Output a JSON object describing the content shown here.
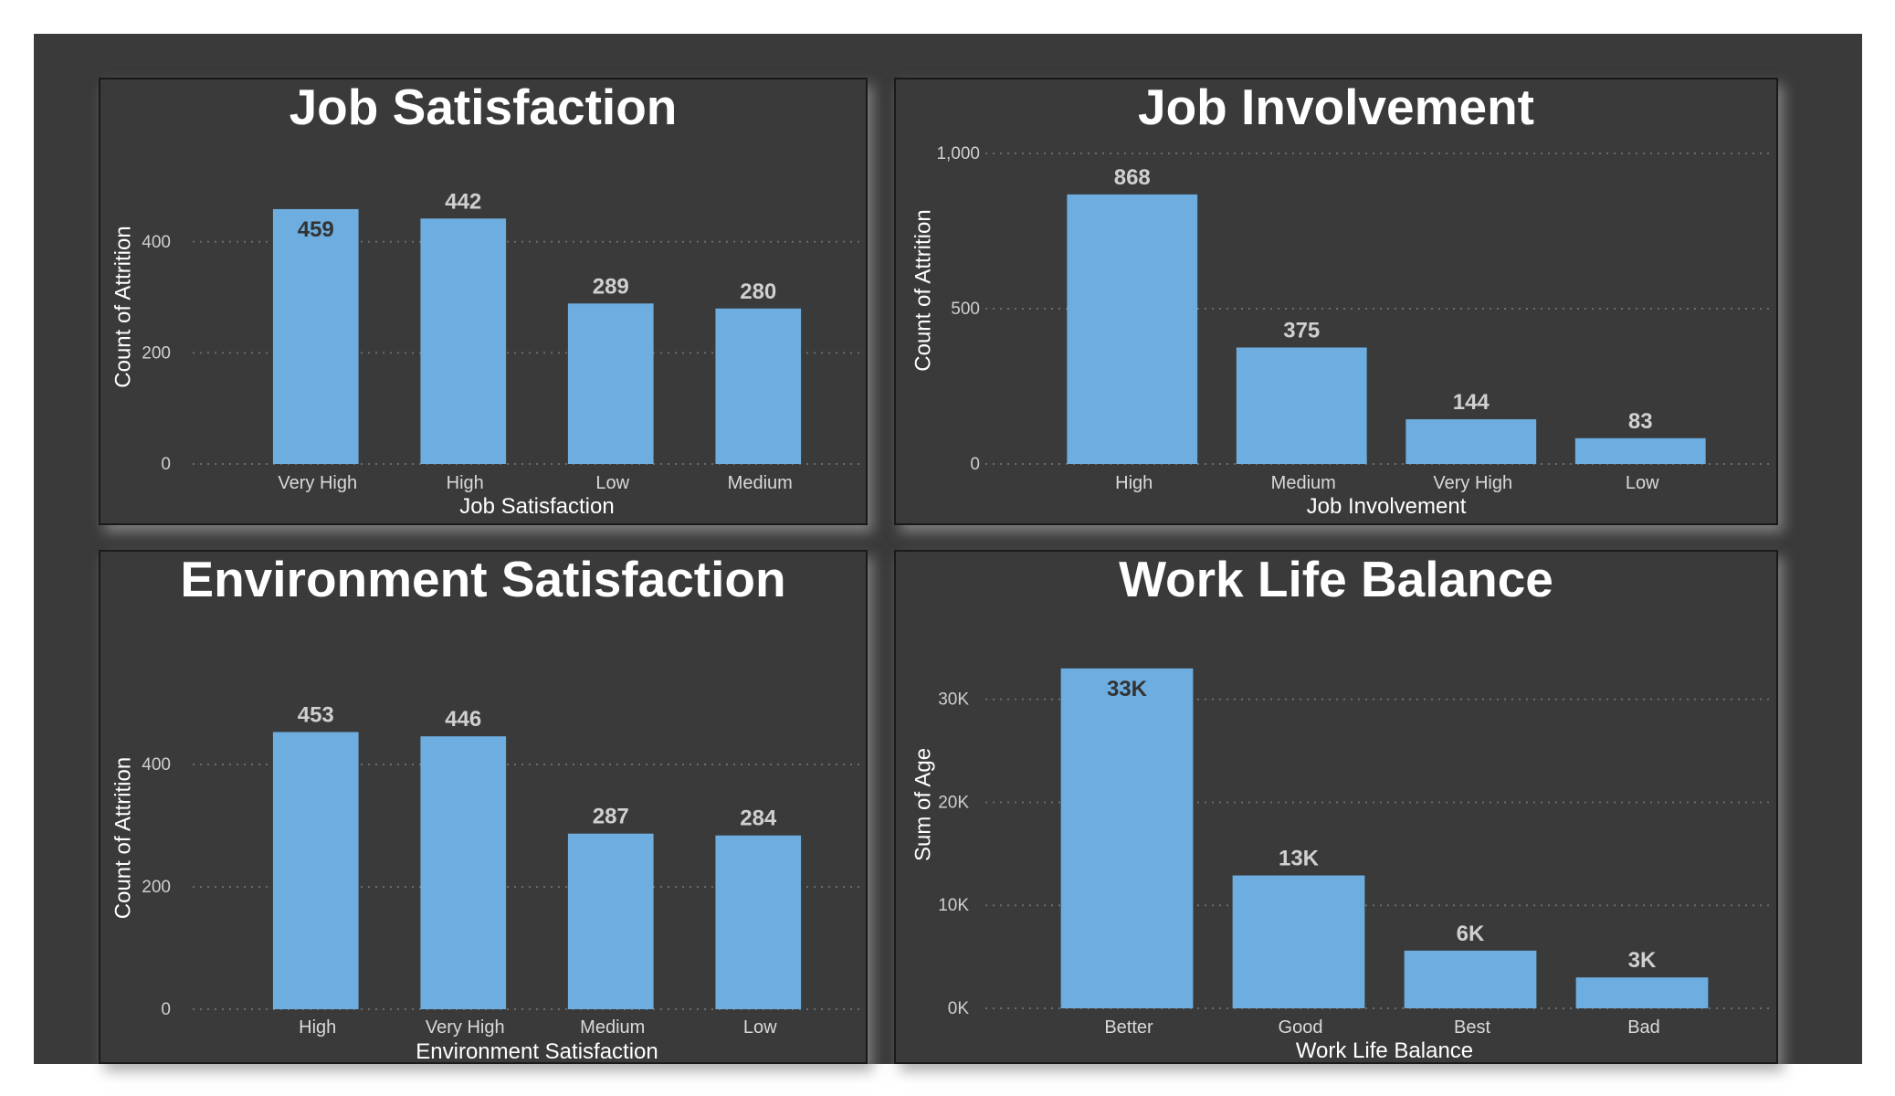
{
  "colors": {
    "background": "#3a3a3a",
    "bar": "#6daddf",
    "label_outside": "#d0d0d0",
    "label_inside": "#333333"
  },
  "chart_data": [
    {
      "type": "bar",
      "title": "Job Satisfaction",
      "xlabel": "Job Satisfaction",
      "ylabel": "Count of Attrition",
      "categories": [
        "Very High",
        "High",
        "Low",
        "Medium"
      ],
      "values": [
        459,
        442,
        289,
        280
      ],
      "data_labels": [
        "459",
        "442",
        "289",
        "280"
      ],
      "data_label_inside": [
        true,
        false,
        false,
        false
      ],
      "ylim": [
        0,
        500
      ],
      "yticks": [
        0,
        200,
        400
      ],
      "ytick_labels": [
        "0",
        "200",
        "400"
      ],
      "grid": true
    },
    {
      "type": "bar",
      "title": "Job Involvement",
      "xlabel": "Job Involvement",
      "ylabel": "Count of Attrition",
      "categories": [
        "High",
        "Medium",
        "Very High",
        "Low"
      ],
      "values": [
        868,
        375,
        144,
        83
      ],
      "data_labels": [
        "868",
        "375",
        "144",
        "83"
      ],
      "data_label_inside": [
        false,
        false,
        false,
        false
      ],
      "ylim": [
        0,
        1000
      ],
      "yticks": [
        0,
        500,
        1000
      ],
      "ytick_labels": [
        "0",
        "500",
        "1,000"
      ],
      "grid": true
    },
    {
      "type": "bar",
      "title": "Environment Satisfaction",
      "xlabel": "Environment Satisfaction",
      "ylabel": "Count of Attrition",
      "categories": [
        "High",
        "Very High",
        "Medium",
        "Low"
      ],
      "values": [
        453,
        446,
        287,
        284
      ],
      "data_labels": [
        "453",
        "446",
        "287",
        "284"
      ],
      "data_label_inside": [
        false,
        false,
        false,
        false
      ],
      "ylim": [
        0,
        500
      ],
      "yticks": [
        0,
        200,
        400
      ],
      "ytick_labels": [
        "0",
        "200",
        "400"
      ],
      "grid": true
    },
    {
      "type": "bar",
      "title": "Work Life Balance",
      "xlabel": "Work Life Balance",
      "ylabel": "Sum of Age",
      "categories": [
        "Better",
        "Good",
        "Best",
        "Bad"
      ],
      "values": [
        33000,
        12900,
        5600,
        3000
      ],
      "data_labels": [
        "33K",
        "13K",
        "6K",
        "3K"
      ],
      "data_label_inside": [
        true,
        false,
        false,
        false
      ],
      "ylim": [
        0,
        36000
      ],
      "yticks": [
        0,
        10000,
        20000,
        30000
      ],
      "ytick_labels": [
        "0K",
        "10K",
        "20K",
        "30K"
      ],
      "grid": true
    }
  ]
}
